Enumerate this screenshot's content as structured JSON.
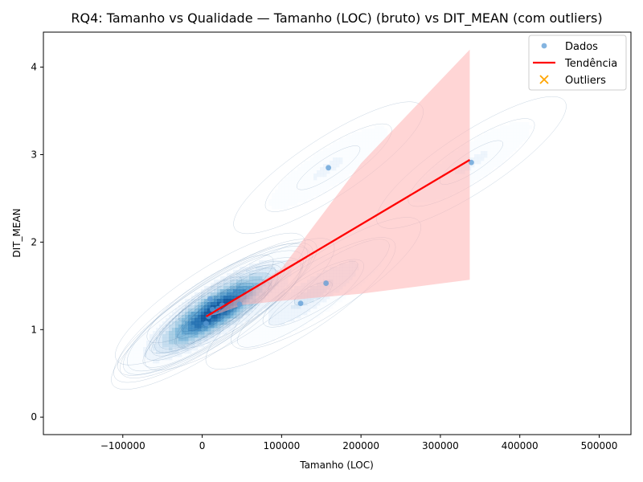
{
  "chart_data": {
    "type": "scatter",
    "title": "RQ4: Tamanho vs Qualidade — Tamanho (LOC) (bruto) vs DIT_MEAN (com outliers)",
    "xlabel": "Tamanho (LOC)",
    "ylabel": "DIT_MEAN",
    "xlim": [
      -200000,
      540000
    ],
    "ylim": [
      -0.2,
      4.4
    ],
    "xticks": [
      -100000,
      0,
      100000,
      200000,
      300000,
      400000,
      500000
    ],
    "xtick_labels": [
      "−100000",
      "0",
      "100000",
      "200000",
      "300000",
      "400000",
      "500000"
    ],
    "yticks": [
      0,
      1,
      2,
      3,
      4
    ],
    "ytick_labels": [
      "0",
      "1",
      "2",
      "3",
      "4"
    ],
    "grid": false,
    "legend_position": "top-right",
    "legend": [
      "Dados",
      "Tendência",
      "Outliers"
    ],
    "series": [
      {
        "name": "Dados",
        "kind": "scatter",
        "color": "#5b9bd5",
        "points": [
          {
            "x": 5000,
            "y": 1.07
          },
          {
            "x": 8000,
            "y": 1.15
          },
          {
            "x": 10000,
            "y": 1.35
          },
          {
            "x": 13000,
            "y": 1.23
          },
          {
            "x": 16000,
            "y": 1.2
          },
          {
            "x": 20000,
            "y": 1.24
          },
          {
            "x": 25000,
            "y": 1.28
          },
          {
            "x": 47000,
            "y": 1.29
          },
          {
            "x": 124000,
            "y": 1.3
          },
          {
            "x": 156000,
            "y": 1.53
          },
          {
            "x": 159000,
            "y": 2.85
          },
          {
            "x": 339000,
            "y": 2.91
          }
        ]
      },
      {
        "name": "Tendência",
        "kind": "line",
        "color": "#ff0000",
        "points": [
          {
            "x": 5000,
            "y": 1.15
          },
          {
            "x": 337000,
            "y": 2.94
          }
        ],
        "ci_band_color": "#ffb3b3",
        "ci_lower": [
          {
            "x": 5000,
            "y": 1.15
          },
          {
            "x": 20000,
            "y": 1.18
          },
          {
            "x": 50000,
            "y": 1.28
          },
          {
            "x": 100000,
            "y": 1.33
          },
          {
            "x": 200000,
            "y": 1.41
          },
          {
            "x": 337000,
            "y": 1.57
          }
        ],
        "ci_upper": [
          {
            "x": 5000,
            "y": 1.15
          },
          {
            "x": 20000,
            "y": 1.2
          },
          {
            "x": 50000,
            "y": 1.4
          },
          {
            "x": 100000,
            "y": 1.7
          },
          {
            "x": 200000,
            "y": 2.9
          },
          {
            "x": 337000,
            "y": 4.2
          }
        ]
      },
      {
        "name": "Outliers",
        "kind": "scatter",
        "marker": "x",
        "color": "#ffa500",
        "points": []
      }
    ],
    "density_contours": {
      "color": "#3a7fc0",
      "levels": 10
    }
  }
}
